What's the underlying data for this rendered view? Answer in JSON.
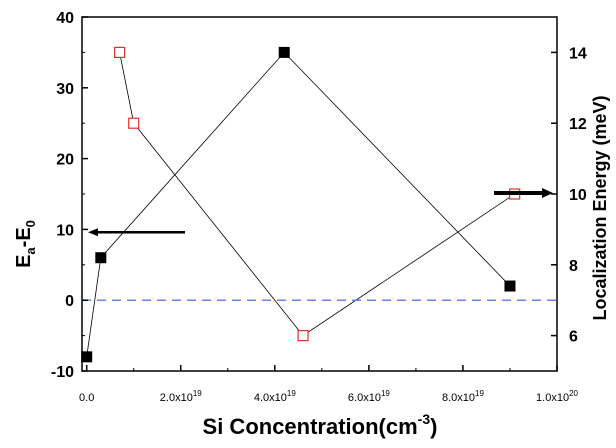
{
  "chart_data": {
    "type": "scatter",
    "title": "",
    "xlabel": {
      "text": "Si Concentration(cm",
      "sup": "-3",
      "suffix": ")"
    },
    "ylabel_left": {
      "main": "E",
      "sub1": "a",
      "mid": "-E",
      "sub2": "0"
    },
    "ylabel_right": "Localization Energy (meV)",
    "xlim": [
      -1e+18,
      1e+20
    ],
    "ylim_left": [
      -10,
      40
    ],
    "ylim_right": [
      5.0,
      15.0
    ],
    "x_ticks": [
      {
        "value": 0,
        "base": "0.0",
        "exp": ""
      },
      {
        "value": 2e+19,
        "base": "2.0x10",
        "exp": "19"
      },
      {
        "value": 4e+19,
        "base": "4.0x10",
        "exp": "19"
      },
      {
        "value": 6e+19,
        "base": "6.0x10",
        "exp": "19"
      },
      {
        "value": 8e+19,
        "base": "8.0x10",
        "exp": "19"
      },
      {
        "value": 1e+20,
        "base": "1.0x10",
        "exp": "20"
      }
    ],
    "y_ticks_left": [
      -10,
      0,
      10,
      20,
      30,
      40
    ],
    "y_ticks_right": [
      6,
      8,
      10,
      12,
      14
    ],
    "reference_line": {
      "y": 0,
      "color": "#6b7ff0",
      "style": "dashed"
    },
    "series": [
      {
        "axis": "left",
        "marker": "filled-square",
        "color": "#000000",
        "x": [
          0,
          3e+18,
          4.2e+19,
          9e+19
        ],
        "y": [
          -8,
          6,
          35,
          2
        ]
      },
      {
        "axis": "right",
        "marker": "open-square",
        "color": "#e03030",
        "x": [
          7e+18,
          1e+19,
          4.6e+19,
          9.1e+19
        ],
        "y": [
          14.0,
          12.0,
          6.0,
          10.0
        ]
      }
    ],
    "annotations": [
      {
        "type": "arrow",
        "direction": "left",
        "points_to_axis": "left"
      },
      {
        "type": "arrow",
        "direction": "right",
        "points_to_axis": "right"
      }
    ]
  }
}
